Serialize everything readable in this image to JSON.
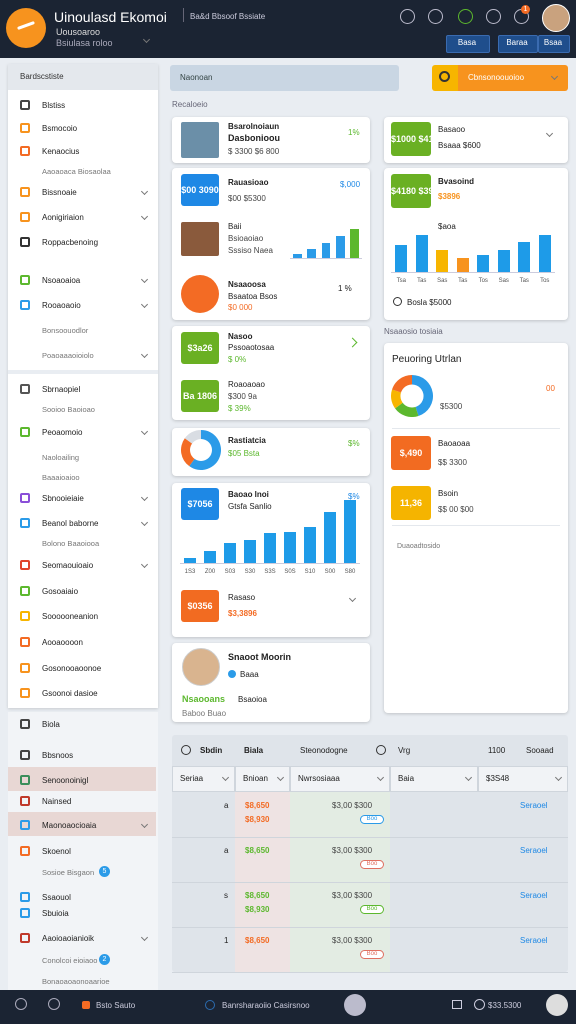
{
  "header": {
    "title": "Uinoulasd Ekomoi",
    "subtitle": "Uousoaroo",
    "tagline": "Bsiulasa roloo",
    "workspace": "Ba&d Bbsoof Bssiate",
    "notification_count": "1",
    "buttons": [
      "Basa",
      "Baraa",
      "Bsaa"
    ]
  },
  "search": {
    "placeholder": "Naonoan",
    "action": "Cbnsonoouoioo"
  },
  "sidebar": {
    "title": "Bardscstiste",
    "items": [
      {
        "label": "Blstiss",
        "icon": "#444"
      },
      {
        "label": "Bsmocoio",
        "icon": "#f7931e"
      },
      {
        "label": "Kenaocius",
        "icon": "#f36b24"
      },
      {
        "label": "Aaoaoaca Biosaolaa"
      },
      {
        "label": "Bissnoaie",
        "icon": "#f7931e",
        "chevron": true
      },
      {
        "label": "Aonigiriaion",
        "icon": "#f7931e",
        "chevron": true
      },
      {
        "label": "Roppacbenoing",
        "icon": "#333"
      },
      {
        "label": "Nsoaoaioa",
        "icon": "#5cb82e",
        "chevron": true
      },
      {
        "label": "Rooaoaoio",
        "icon": "#2b9be8",
        "chevron": true
      },
      {
        "label": "Bonsoouodlor"
      },
      {
        "label": "Poaoaaaoioiolo",
        "chevron": true
      },
      {
        "label": "Sbrnaopiel",
        "icon": "#555"
      },
      {
        "label": "Sooioo Baoioao"
      },
      {
        "label": "Peoaomoio",
        "icon": "#5cb82e",
        "chevron": true
      },
      {
        "label": "Naoloailing"
      },
      {
        "label": "Baaaioaioo"
      },
      {
        "label": "Sbnooieiaie",
        "icon": "#8a4fd8",
        "chevron": true
      },
      {
        "label": "Beanol baborne",
        "icon": "#2b9be8",
        "chevron": true
      },
      {
        "label": "Bolono Baaoiooa"
      },
      {
        "label": "Seomaouioaio",
        "icon": "#e0452c",
        "chevron": true
      },
      {
        "label": "Gosoaiaio",
        "icon": "#5cb82e"
      },
      {
        "label": "Soooooneanion",
        "icon": "#f7b500"
      },
      {
        "label": "Aooaoooon",
        "icon": "#f36b24"
      },
      {
        "label": "Gosonooaoonoe",
        "icon": "#f7931e"
      },
      {
        "label": "Gsoonoi dasioe",
        "icon": "#f7931e"
      },
      {
        "label": "Biola",
        "icon": "#444"
      },
      {
        "label": "Bbsnoos",
        "icon": "#444"
      },
      {
        "label": "Senoonoinigl",
        "icon": "#3a8e5a",
        "highlight": true
      },
      {
        "label": "Nainsed",
        "icon": "#c0392b"
      },
      {
        "label": "Maonoaocioaia",
        "icon": "#2b9be8",
        "highlight": true,
        "chevron": true
      },
      {
        "label": "Skoenol",
        "icon": "#f36b24"
      },
      {
        "label": "Sosioe Bisgaon",
        "badge": "5"
      },
      {
        "label": "Ssaouol",
        "icon": "#2b9be8"
      },
      {
        "label": "Sbuioia",
        "icon": "#2b9be8"
      },
      {
        "label": "Aaoioaoianioik",
        "icon": "#c0392b",
        "chevron": true
      },
      {
        "label": "Conolcoi eioiaoo",
        "badge": "2"
      },
      {
        "label": "Bonaoaoaonoaarioe"
      }
    ]
  },
  "overview": {
    "label": "Recaloeio"
  },
  "cards": {
    "profile": {
      "name": "Bsarolnoiaun",
      "role": "Dasbonioou",
      "amount": "$ 3300 $6 800",
      "change": "1%"
    },
    "revenue": {
      "badge": "$00 3090",
      "title": "Rauasioao",
      "amount": "$00 $5300",
      "total": "$,000",
      "item_title": "Baii",
      "item_lines": [
        "Bsioaoiao",
        "Sssiso Naea"
      ],
      "second_title": "Nsaaoosa",
      "second_sub": "Bsaatoa Bsos",
      "second_amount": "$0 000",
      "second_change": "1 %"
    },
    "growth": {
      "badge": "$3a26",
      "title": "Nasoo",
      "sub": "Pssoaotosaa",
      "change": "$ 0%",
      "badge2": "Ba 1806",
      "title2": "Roaoaoao",
      "sub2": "$300 9a",
      "change2": "$ 39%"
    },
    "donut_card": {
      "title": "Rastiatcia",
      "sub": "$05 Bsta",
      "change": "$%"
    },
    "sales": {
      "badge": "$7056",
      "title": "Baoao lnoi",
      "sub": "Gtsfa Sanlio",
      "change": "$%",
      "badge2": "$0356",
      "title2": "Rasaso",
      "amount2": "$3,3896"
    },
    "member": {
      "name": "Snaoot Moorin",
      "tag": "Baaa",
      "title": "Nsaooans",
      "sub": "Bsaoioa",
      "note": "Baboo Buao"
    },
    "balance": {
      "badge": "$1000 $4180",
      "title": "Basaoo",
      "sub": "Bsaaa $600"
    },
    "stats": {
      "badge": "$4180 $396",
      "title": "Bvasoind",
      "amount": "$3896",
      "sub": "$aoa",
      "footer": "Bosla $5000"
    },
    "report": {
      "label": "Nsaaosio tosiaia",
      "title": "Peuoring Utrlan",
      "amount": "$5300",
      "change": "00",
      "item1_badge": "$,490",
      "item1_title": "Baoaoaa",
      "item1_amount": "$$ 3300",
      "item2_badge": "11,36",
      "item2_title": "Bsoin",
      "item2_amount": "$$ 00 $00",
      "footer": "Duaoadtosido"
    }
  },
  "charts": [
    {
      "type": "bar",
      "values": [
        2,
        5,
        8,
        12,
        16
      ],
      "colors": [
        "#2b9be8",
        "#2b9be8",
        "#2b9be8",
        "#2b9be8",
        "#5cb82e"
      ],
      "ylim": [
        0,
        18
      ]
    },
    {
      "type": "bar",
      "categories": [
        "Tsa",
        "Tas",
        "Sas",
        "Tas",
        "Tos",
        "Sas",
        "Tas",
        "Tos"
      ],
      "values": [
        27,
        37,
        22,
        14,
        17,
        22,
        30,
        37
      ],
      "colors": [
        "#1e9be8",
        "#1e9be8",
        "#f7b500",
        "#f7931e",
        "#1e9be8",
        "#1e9be8",
        "#1e9be8",
        "#1e9be8"
      ],
      "ylim": [
        0,
        40
      ]
    },
    {
      "type": "bar",
      "categories": [
        "1S3",
        "Z00",
        "S03",
        "S30",
        "S3S",
        "S0S",
        "S10",
        "S00",
        "S80"
      ],
      "values": [
        3,
        7,
        12,
        14,
        18,
        19,
        22,
        31,
        38
      ],
      "colors": [
        "#1e9be8",
        "#1e9be8",
        "#1e9be8",
        "#1e9be8",
        "#1e9be8",
        "#1e9be8",
        "#1e9be8",
        "#1e9be8",
        "#1e9be8"
      ],
      "ylim": [
        0,
        40
      ]
    },
    {
      "type": "pie",
      "values": [
        60,
        25,
        15
      ],
      "colors": [
        "#2b9be8",
        "#f36b24",
        "#d9dde3"
      ]
    },
    {
      "type": "pie",
      "values": [
        45,
        20,
        15,
        20
      ],
      "colors": [
        "#2b9be8",
        "#5cb82e",
        "#f7b500",
        "#f36b24"
      ]
    }
  ],
  "table": {
    "toolbar": [
      "Sbdin",
      "Biala",
      "Steonodogne",
      "Vrg",
      "1100",
      "Sooaad"
    ],
    "columns": [
      "Seriaa",
      "Bnioan",
      "Nwrsosiaaa",
      "Baia",
      "$3S48"
    ],
    "rows": [
      {
        "index": "a",
        "amounts": [
          "$8,650",
          "$8,930"
        ],
        "values": "$3,00 $300",
        "status": "Boo",
        "link": "Seraoel"
      },
      {
        "index": "a",
        "amounts": [
          "$8,650"
        ],
        "values": "$3,00 $300",
        "status": "Boo",
        "link": "Seraoel"
      },
      {
        "index": "s",
        "amounts": [
          "$8,650",
          "$8,930"
        ],
        "values": "$3,00 $300",
        "status": "Boo",
        "link": "Seraoel"
      },
      {
        "index": "1",
        "amounts": [
          "$8,650"
        ],
        "values": "$3,00 $300",
        "status": "Boo",
        "link": "Seraoel"
      }
    ]
  },
  "footer": {
    "left": "Bsto Sauto",
    "center": "Banrsharaoiio Casirsnoo",
    "right": "$33.5300"
  }
}
